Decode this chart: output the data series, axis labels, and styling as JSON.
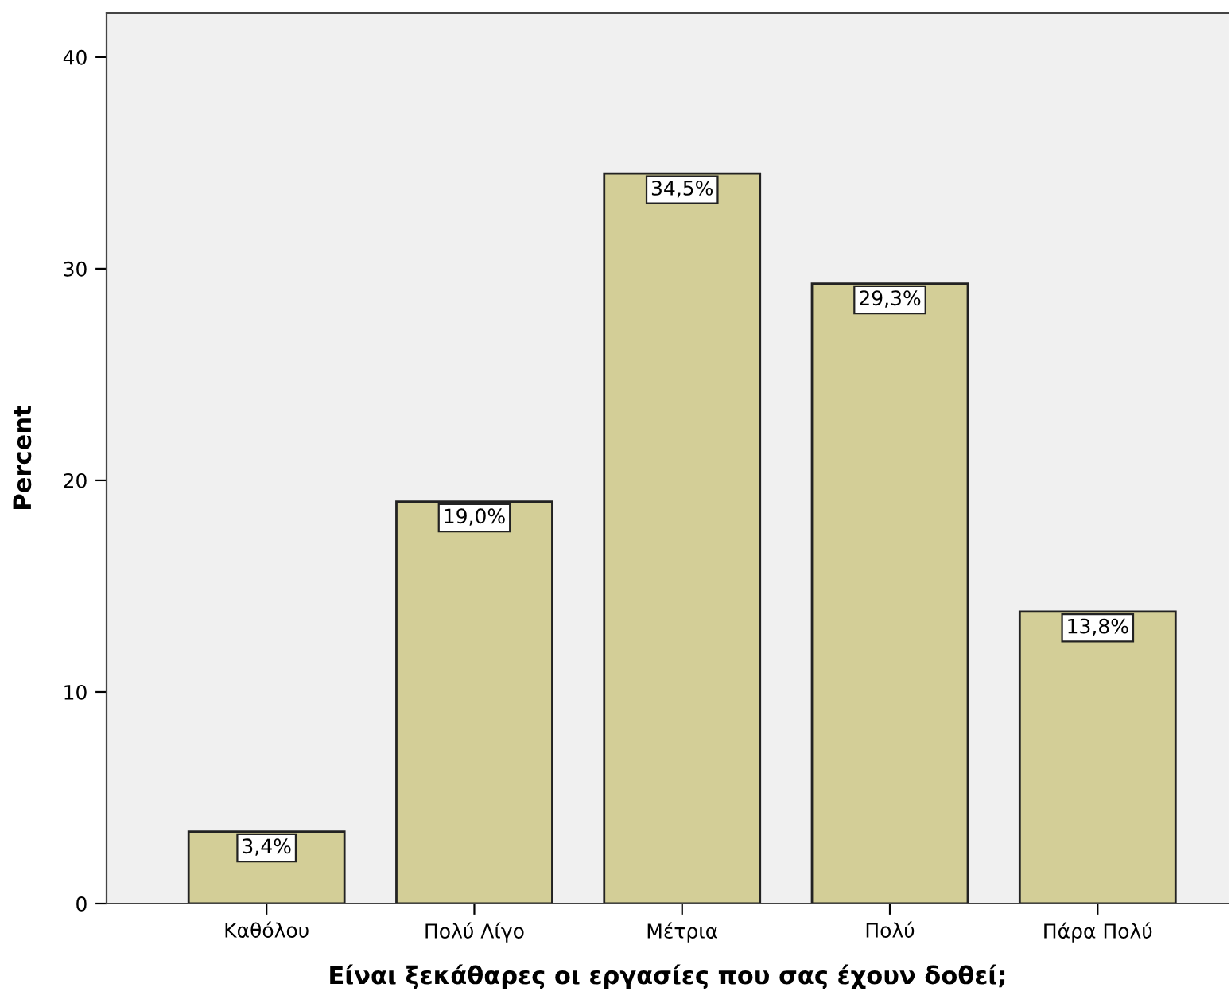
{
  "chart_data": {
    "type": "bar",
    "xlabel": "Είναι ξεκάθαρες οι εργασίες που σας έχουν δοθεί;",
    "ylabel": "Percent",
    "categories": [
      "Καθόλου",
      "Πολύ Λίγο",
      "Μέτρια",
      "Πολύ",
      "Πάρα Πολύ"
    ],
    "values": [
      3.4,
      19.0,
      34.5,
      29.3,
      13.8
    ],
    "value_labels": [
      "3,4%",
      "19,0%",
      "34,5%",
      "29,3%",
      "13,8%"
    ],
    "color": "#d3ce97",
    "ylim": [
      0,
      42.1
    ],
    "yticks": [
      0,
      10,
      20,
      30,
      40
    ],
    "grid": false,
    "legend": false
  }
}
